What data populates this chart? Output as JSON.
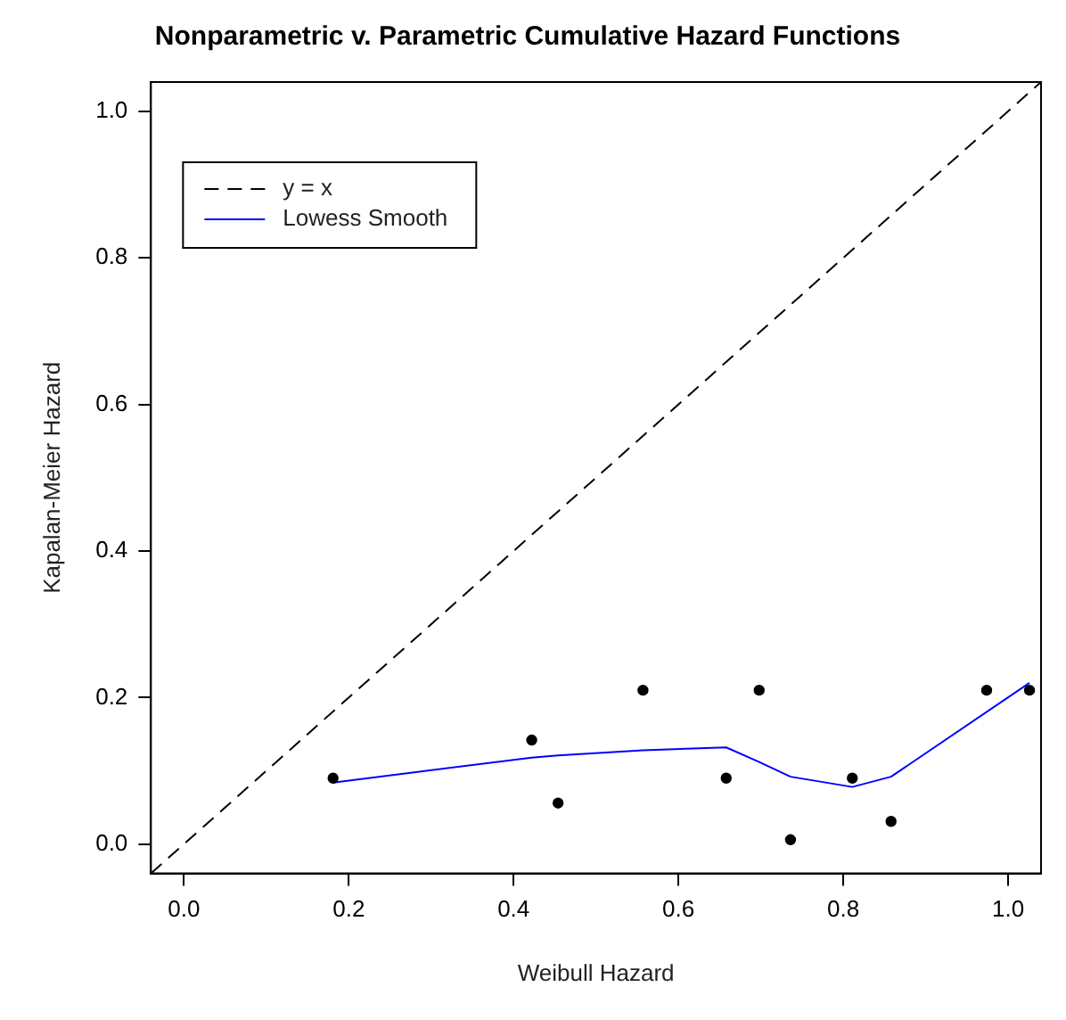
{
  "chart_data": {
    "type": "scatter",
    "title": "Nonparametric v. Parametric Cumulative Hazard Functions",
    "xlabel": "Weibull Hazard",
    "ylabel": "Kapalan-Meier Hazard",
    "xlim": [
      -0.04,
      1.04
    ],
    "ylim": [
      -0.04,
      1.04
    ],
    "xticks": [
      {
        "value": 0,
        "label": "0.0"
      },
      0.2,
      0.4,
      0.6,
      0.8,
      {
        "value": 1.0,
        "label": "1.0"
      }
    ],
    "yticks": [
      {
        "value": 0,
        "label": "0.0"
      },
      0.2,
      0.4,
      0.6,
      0.8,
      {
        "value": 1.0,
        "label": "1.0"
      }
    ],
    "grid": false,
    "legend": "top left",
    "series": [
      {
        "color": "#000000",
        "marker": "circle",
        "x": [
          0.181,
          0.422,
          0.454,
          0.557,
          0.658,
          0.698,
          0.736,
          0.811,
          0.858,
          0.974,
          1.026
        ],
        "values": [
          0.09,
          0.142,
          0.056,
          0.21,
          0.09,
          0.21,
          0.006,
          0.09,
          0.031,
          0.21,
          0.21
        ]
      },
      {
        "type": "line",
        "name": "y = x",
        "color": "#000000",
        "line_style": "dashed",
        "marker": "none",
        "x": [
          -0.04,
          1.04
        ],
        "values": [
          -0.04,
          1.04
        ]
      },
      {
        "type": "line",
        "name": "Lowess Smooth",
        "color": "#0000ff",
        "line_style": "solid",
        "marker": "none",
        "x": [
          0.181,
          0.422,
          0.454,
          0.557,
          0.658,
          0.698,
          0.736,
          0.811,
          0.858,
          1.026
        ],
        "values": [
          0.084,
          0.118,
          0.121,
          0.128,
          0.132,
          0.112,
          0.092,
          0.078,
          0.092,
          0.22
        ]
      }
    ]
  }
}
